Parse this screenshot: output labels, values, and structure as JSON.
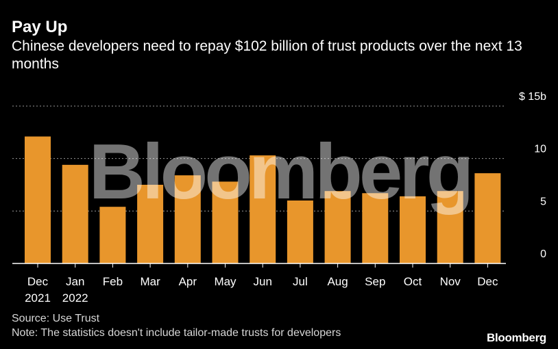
{
  "header": {
    "title": "Pay Up",
    "subtitle": "Chinese developers need to repay $102 billion of trust products over the next 13 months"
  },
  "footer": {
    "source": "Source: Use Trust",
    "note": "Note: The statistics doesn't include tailor-made trusts for developers",
    "brand": "Bloomberg"
  },
  "watermark": "Bloomberg",
  "colors": {
    "bar": "#e8962c",
    "grid": "#9a9a9a",
    "background": "#000000",
    "text": "#ffffff"
  },
  "chart_data": {
    "type": "bar",
    "title": "Pay Up",
    "categories": [
      [
        "Dec",
        "2021"
      ],
      [
        "Jan",
        "2022"
      ],
      [
        "Feb"
      ],
      [
        "Mar"
      ],
      [
        "Apr"
      ],
      [
        "May"
      ],
      [
        "Jun"
      ],
      [
        "Jul"
      ],
      [
        "Aug"
      ],
      [
        "Sep"
      ],
      [
        "Oct"
      ],
      [
        "Nov"
      ],
      [
        "Dec"
      ]
    ],
    "values": [
      12.1,
      9.4,
      5.4,
      7.5,
      8.4,
      7.8,
      10.3,
      6.0,
      6.9,
      6.7,
      6.4,
      6.9,
      8.6
    ],
    "yticks": [
      {
        "value": 15,
        "label": "$ 15b"
      },
      {
        "value": 10,
        "label": "10"
      },
      {
        "value": 5,
        "label": "5"
      },
      {
        "value": 0,
        "label": "0"
      }
    ],
    "ylim": [
      0,
      15
    ],
    "xlabel": "",
    "ylabel": "",
    "grid": true
  }
}
